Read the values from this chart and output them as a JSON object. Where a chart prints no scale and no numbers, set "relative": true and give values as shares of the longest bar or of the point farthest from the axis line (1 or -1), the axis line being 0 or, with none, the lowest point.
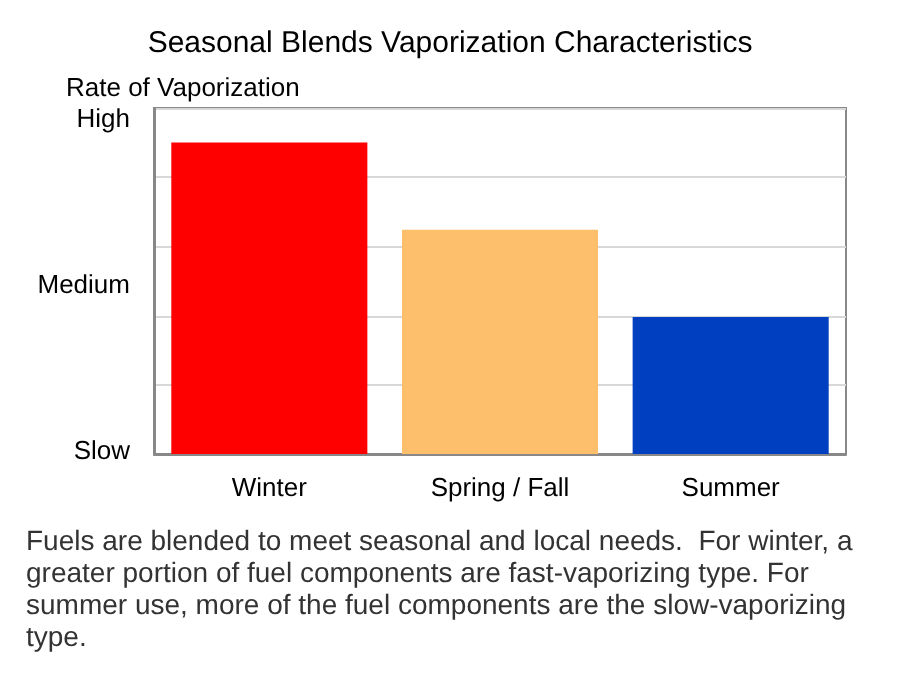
{
  "chart_data": {
    "type": "bar",
    "title": "Seasonal Blends Vaporization Characteristics",
    "ylabel": "Rate of Vaporization",
    "categories": [
      "Winter",
      "Spring / Fall",
      "Summer"
    ],
    "values": [
      1,
      0.72,
      0.44
    ],
    "colors": [
      "#ff0000",
      "#fdbf6b",
      "#0040c0"
    ],
    "relative": true,
    "grid": "y",
    "annotations": [
      "High",
      "Medium",
      "Slow",
      "Fuels are blended to meet seasonal and local needs.  For winter, a greater portion of fuel components are fast-vaporizing type. For summer use, more of the fuel components are the slow-vaporizing type."
    ]
  }
}
